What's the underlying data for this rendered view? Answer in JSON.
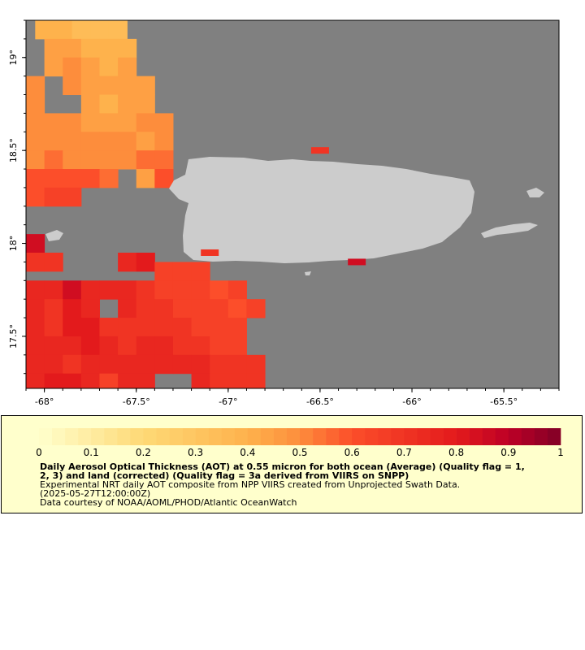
{
  "map": {
    "colors": {
      "background": "#808080",
      "land": "#cccccc",
      "frame": "#000000"
    },
    "lon_range": [
      -68.1,
      -65.2
    ],
    "lat_range": [
      17.22,
      19.2
    ],
    "x_ticks": [
      {
        "value": -68.0,
        "label": "-68°"
      },
      {
        "value": -67.5,
        "label": "-67.5°"
      },
      {
        "value": -67.0,
        "label": "-67°"
      },
      {
        "value": -66.5,
        "label": "-66.5°"
      },
      {
        "value": -66.0,
        "label": "-66°"
      },
      {
        "value": -65.5,
        "label": "-65.5°"
      }
    ],
    "y_ticks": [
      {
        "value": 19.0,
        "label": "19°"
      },
      {
        "value": 18.5,
        "label": "18.5°"
      },
      {
        "value": 18.0,
        "label": "18°"
      },
      {
        "value": 17.5,
        "label": "17.5°"
      }
    ],
    "cell_size_deg": 0.1,
    "aot_rows": [
      {
        "lat": 19.15,
        "lon_start": -68.0,
        "values": [
          0.4,
          0.4,
          0.35,
          0.35,
          0.35
        ]
      },
      {
        "lat": 19.05,
        "lon_start": -68.05,
        "values": [
          null,
          0.45,
          0.45,
          0.4,
          0.4,
          0.4
        ]
      },
      {
        "lat": 18.95,
        "lon_start": -68.05,
        "values": [
          null,
          0.45,
          0.5,
          0.45,
          0.4,
          0.45
        ]
      },
      {
        "lat": 18.85,
        "lon_start": -68.05,
        "values": [
          0.5,
          null,
          0.5,
          0.45,
          0.45,
          0.45,
          0.45
        ]
      },
      {
        "lat": 18.75,
        "lon_start": -68.05,
        "values": [
          0.5,
          null,
          null,
          0.45,
          0.4,
          0.45,
          0.45
        ]
      },
      {
        "lat": 18.65,
        "lon_start": -68.05,
        "values": [
          0.5,
          0.5,
          0.5,
          0.45,
          0.45,
          0.45,
          0.5,
          0.5
        ]
      },
      {
        "lat": 18.55,
        "lon_start": -68.05,
        "values": [
          0.5,
          0.5,
          0.5,
          0.5,
          0.5,
          0.5,
          0.45,
          0.5
        ]
      },
      {
        "lat": 18.45,
        "lon_start": -68.05,
        "values": [
          0.5,
          0.55,
          0.5,
          0.5,
          0.5,
          0.5,
          0.55,
          0.55
        ]
      },
      {
        "lat": 18.35,
        "lon_start": -68.05,
        "values": [
          0.6,
          0.6,
          0.6,
          0.6,
          0.55,
          null,
          0.45,
          0.6
        ]
      },
      {
        "lat": 18.25,
        "lon_start": -68.05,
        "values": [
          0.6,
          0.65,
          0.65
        ]
      },
      {
        "lat": 18.0,
        "lon_start": -68.05,
        "values": [
          0.85
        ]
      },
      {
        "lat": 17.9,
        "lon_start": -68.05,
        "values": [
          0.7,
          0.7
        ]
      },
      {
        "lat": 17.9,
        "lon_start": -67.55,
        "values": [
          0.75,
          0.8
        ]
      },
      {
        "lat": 17.85,
        "lon_start": -67.35,
        "values": [
          0.65,
          0.65,
          0.65
        ]
      },
      {
        "lat": 17.75,
        "lon_start": -68.05,
        "values": [
          0.75,
          0.75,
          0.85,
          0.75,
          0.75,
          0.75,
          0.7,
          0.65,
          0.65,
          0.65,
          0.6,
          0.65
        ]
      },
      {
        "lat": 17.65,
        "lon_start": -68.05,
        "values": [
          0.75,
          0.7,
          0.8,
          0.75,
          null,
          0.75,
          0.7,
          0.7,
          0.65,
          0.65,
          0.65,
          0.6,
          0.65
        ]
      },
      {
        "lat": 17.55,
        "lon_start": -68.05,
        "values": [
          0.75,
          0.7,
          0.8,
          0.8,
          0.7,
          0.7,
          0.7,
          0.7,
          0.7,
          0.65,
          0.65,
          0.65
        ]
      },
      {
        "lat": 17.45,
        "lon_start": -68.05,
        "values": [
          0.75,
          0.75,
          0.75,
          0.8,
          0.75,
          0.7,
          0.75,
          0.75,
          0.7,
          0.7,
          0.65,
          0.65
        ]
      },
      {
        "lat": 17.35,
        "lon_start": -68.05,
        "values": [
          0.75,
          0.75,
          0.7,
          0.75,
          0.75,
          0.75,
          0.75,
          0.75,
          0.75,
          0.75,
          0.7,
          0.7,
          0.7
        ]
      },
      {
        "lat": 17.25,
        "lon_start": -68.05,
        "values": [
          0.75,
          0.8,
          0.8,
          0.75,
          0.65,
          0.75,
          0.75,
          null,
          null,
          0.75,
          0.7,
          0.7,
          0.7
        ]
      }
    ],
    "coast_pixels": [
      {
        "lat": 18.5,
        "lon": -66.5,
        "value": 0.7
      },
      {
        "lat": 17.95,
        "lon": -67.1,
        "value": 0.7
      },
      {
        "lat": 17.9,
        "lon": -66.3,
        "value": 0.85
      }
    ]
  },
  "legend": {
    "colors": {
      "background": "#ffffcc",
      "border": "#000000"
    },
    "colorbar": {
      "min": 0,
      "max": 1,
      "stops": [
        {
          "value": 0.0,
          "color": "#ffffcc"
        },
        {
          "value": 0.2,
          "color": "#fed976"
        },
        {
          "value": 0.4,
          "color": "#feb24c"
        },
        {
          "value": 0.5,
          "color": "#fd8d3c"
        },
        {
          "value": 0.6,
          "color": "#fc4e2a"
        },
        {
          "value": 0.8,
          "color": "#e31a1c"
        },
        {
          "value": 0.9,
          "color": "#bd0026"
        },
        {
          "value": 1.0,
          "color": "#800026"
        }
      ],
      "tick_labels": [
        "0",
        "0.1",
        "0.2",
        "0.3",
        "0.4",
        "0.5",
        "0.6",
        "0.7",
        "0.8",
        "0.9",
        "1"
      ]
    },
    "title_line1": "Daily Aerosol Optical Thickness (AOT) at 0.55 micron for both ocean (Average) (Quality flag = 1,",
    "title_line2": "2, 3) and land (corrected) (Quality flag = 3a derived from VIIRS on SNPP)",
    "desc_line1": "Experimental NRT daily AOT composite from NPP VIIRS created from Unprojected Swath Data.",
    "desc_line2": "(2025-05-27T12:00:00Z)",
    "desc_line3": "Data courtesy of NOAA/AOML/PHOD/Atlantic OceanWatch"
  }
}
